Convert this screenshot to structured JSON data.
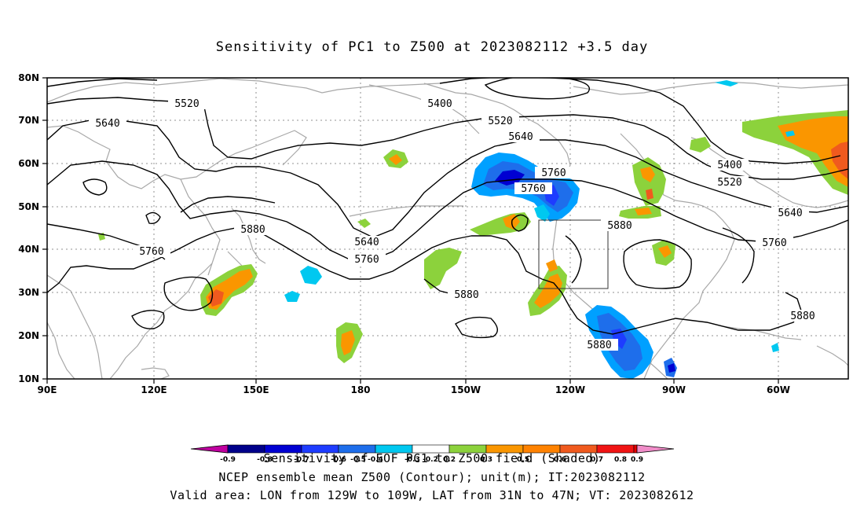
{
  "title": "Sensitivity of PC1 to Z500 at 2023082112 +3.5 day",
  "lat_labels": [
    "80N",
    "70N",
    "60N",
    "50N",
    "40N",
    "30N",
    "20N",
    "10N"
  ],
  "lon_labels": [
    "90E",
    "120E",
    "150E",
    "180",
    "150W",
    "120W",
    "90W",
    "60W"
  ],
  "contour_labels": [
    "5520",
    "5400",
    "5640",
    "5520",
    "5640",
    "5760",
    "5760",
    "5400",
    "5520",
    "5640",
    "5880",
    "5640",
    "5760",
    "5760",
    "5880",
    "5880",
    "5760",
    "5880",
    "5880"
  ],
  "colorbar": {
    "levels": [
      "-0.9",
      "-0.8",
      "-0.7",
      "-0.6",
      "-0.5",
      "-0.4",
      "-0.3",
      "-0.2",
      "0.2",
      "0.3",
      "0.5",
      "0.6",
      "0.7",
      "0.8",
      "0.9"
    ],
    "colors": {
      "lowest": "#c000a0",
      "blue_1": "#00008a",
      "blue_2": "#0000d2",
      "blue_3": "#1e3cff",
      "blue_4": "#1e6eeb",
      "blue_5": "#00a0ff",
      "cyan": "#00c8f0",
      "white": "#ffffff",
      "green": "#8cd23c",
      "orange_1": "#fa9600",
      "orange_2": "#ff8200",
      "orange_3": "#f05a1e",
      "red_1": "#f01414",
      "red_2": "#e60000",
      "highest": "#f08cc8"
    }
  },
  "validation_box": {
    "lon_min": -129,
    "lon_max": -109,
    "lat_min": 31,
    "lat_max": 47
  },
  "captions": [
    "Sensitivity of EOF PC1 to Z500 field (Shaded)",
    "NCEP ensemble mean Z500 (Contour); unit(m); IT:2023082112",
    "Valid area: LON from 129W to 109W, LAT from 31N to 47N; VT: 2023082612"
  ]
}
